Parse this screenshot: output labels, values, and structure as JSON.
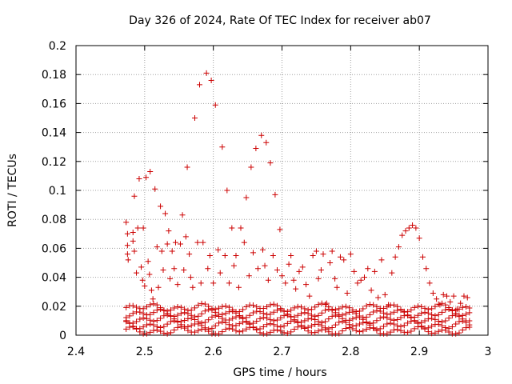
{
  "chart_data": {
    "type": "scatter",
    "title": "Day 326 of 2024, Rate Of TEC Index for receiver ab07",
    "xlabel": "GPS time / hours",
    "ylabel": "ROTI / TECUs",
    "xlim": [
      2.4,
      3.0
    ],
    "ylim": [
      0,
      0.2
    ],
    "xticks": [
      "2.4",
      "2.5",
      "2.6",
      "2.7",
      "2.8",
      "2.9",
      "3"
    ],
    "yticks": [
      "0",
      "0.02",
      "0.04",
      "0.06",
      "0.08",
      "0.1",
      "0.12",
      "0.14",
      "0.16",
      "0.18",
      "0.2"
    ],
    "grid": true,
    "marker": "+",
    "marker_color": "#cc0000",
    "series": [
      {
        "points": [
          [
            2.473,
            0.078
          ],
          [
            2.475,
            0.07
          ],
          [
            2.475,
            0.062
          ],
          [
            2.475,
            0.056
          ],
          [
            2.476,
            0.052
          ],
          [
            2.485,
            0.096
          ],
          [
            2.483,
            0.071
          ],
          [
            2.483,
            0.065
          ],
          [
            2.485,
            0.058
          ],
          [
            2.488,
            0.043
          ],
          [
            2.49,
            0.074
          ],
          [
            2.492,
            0.108
          ],
          [
            2.495,
            0.047
          ],
          [
            2.497,
            0.038
          ],
          [
            2.498,
            0.074
          ],
          [
            2.5,
            0.034
          ],
          [
            2.502,
            0.109
          ],
          [
            2.505,
            0.051
          ],
          [
            2.507,
            0.042
          ],
          [
            2.508,
            0.113
          ],
          [
            2.51,
            0.031
          ],
          [
            2.512,
            0.025
          ],
          [
            2.515,
            0.101
          ],
          [
            2.518,
            0.061
          ],
          [
            2.52,
            0.033
          ],
          [
            2.523,
            0.089
          ],
          [
            2.525,
            0.058
          ],
          [
            2.527,
            0.045
          ],
          [
            2.53,
            0.084
          ],
          [
            2.533,
            0.063
          ],
          [
            2.535,
            0.072
          ],
          [
            2.537,
            0.039
          ],
          [
            2.54,
            0.058
          ],
          [
            2.543,
            0.046
          ],
          [
            2.545,
            0.064
          ],
          [
            2.548,
            0.035
          ],
          [
            2.552,
            0.063
          ],
          [
            2.555,
            0.083
          ],
          [
            2.557,
            0.045
          ],
          [
            2.56,
            0.068
          ],
          [
            2.562,
            0.116
          ],
          [
            2.565,
            0.056
          ],
          [
            2.567,
            0.04
          ],
          [
            2.57,
            0.033
          ],
          [
            2.573,
            0.15
          ],
          [
            2.577,
            0.064
          ],
          [
            2.58,
            0.173
          ],
          [
            2.582,
            0.036
          ],
          [
            2.585,
            0.064
          ],
          [
            2.59,
            0.181
          ],
          [
            2.592,
            0.046
          ],
          [
            2.595,
            0.055
          ],
          [
            2.597,
            0.176
          ],
          [
            2.6,
            0.036
          ],
          [
            2.603,
            0.159
          ],
          [
            2.607,
            0.059
          ],
          [
            2.61,
            0.043
          ],
          [
            2.613,
            0.13
          ],
          [
            2.617,
            0.055
          ],
          [
            2.62,
            0.1
          ],
          [
            2.623,
            0.036
          ],
          [
            2.627,
            0.074
          ],
          [
            2.63,
            0.048
          ],
          [
            2.633,
            0.055
          ],
          [
            2.637,
            0.033
          ],
          [
            2.64,
            0.074
          ],
          [
            2.645,
            0.064
          ],
          [
            2.648,
            0.095
          ],
          [
            2.652,
            0.041
          ],
          [
            2.655,
            0.116
          ],
          [
            2.658,
            0.057
          ],
          [
            2.662,
            0.129
          ],
          [
            2.665,
            0.046
          ],
          [
            2.67,
            0.138
          ],
          [
            2.672,
            0.059
          ],
          [
            2.675,
            0.048
          ],
          [
            2.677,
            0.133
          ],
          [
            2.68,
            0.038
          ],
          [
            2.683,
            0.119
          ],
          [
            2.687,
            0.055
          ],
          [
            2.69,
            0.097
          ],
          [
            2.693,
            0.045
          ],
          [
            2.697,
            0.073
          ],
          [
            2.7,
            0.041
          ],
          [
            2.705,
            0.036
          ],
          [
            2.71,
            0.049
          ],
          [
            2.713,
            0.055
          ],
          [
            2.717,
            0.038
          ],
          [
            2.72,
            0.032
          ],
          [
            2.725,
            0.044
          ],
          [
            2.73,
            0.047
          ],
          [
            2.735,
            0.035
          ],
          [
            2.74,
            0.027
          ],
          [
            2.745,
            0.055
          ],
          [
            2.75,
            0.058
          ],
          [
            2.753,
            0.039
          ],
          [
            2.757,
            0.045
          ],
          [
            2.76,
            0.056
          ],
          [
            2.765,
            0.022
          ],
          [
            2.77,
            0.05
          ],
          [
            2.773,
            0.058
          ],
          [
            2.777,
            0.039
          ],
          [
            2.78,
            0.033
          ],
          [
            2.785,
            0.054
          ],
          [
            2.79,
            0.052
          ],
          [
            2.795,
            0.029
          ],
          [
            2.8,
            0.056
          ],
          [
            2.805,
            0.044
          ],
          [
            2.81,
            0.036
          ],
          [
            2.815,
            0.038
          ],
          [
            2.82,
            0.04
          ],
          [
            2.825,
            0.046
          ],
          [
            2.83,
            0.031
          ],
          [
            2.835,
            0.044
          ],
          [
            2.84,
            0.026
          ],
          [
            2.845,
            0.052
          ],
          [
            2.85,
            0.028
          ],
          [
            2.855,
            0.021
          ],
          [
            2.86,
            0.043
          ],
          [
            2.865,
            0.054
          ],
          [
            2.87,
            0.061
          ],
          [
            2.875,
            0.069
          ],
          [
            2.88,
            0.072
          ],
          [
            2.885,
            0.074
          ],
          [
            2.89,
            0.076
          ],
          [
            2.895,
            0.074
          ],
          [
            2.9,
            0.067
          ],
          [
            2.905,
            0.054
          ],
          [
            2.91,
            0.046
          ],
          [
            2.915,
            0.036
          ],
          [
            2.92,
            0.029
          ],
          [
            2.925,
            0.025
          ],
          [
            2.93,
            0.021
          ],
          [
            2.935,
            0.028
          ],
          [
            2.94,
            0.027
          ],
          [
            2.945,
            0.023
          ],
          [
            2.95,
            0.027
          ],
          [
            2.955,
            0.018
          ],
          [
            2.96,
            0.022
          ],
          [
            2.965,
            0.027
          ],
          [
            2.97,
            0.026
          ]
        ]
      }
    ],
    "baseline_band": {
      "x_start": 2.473,
      "x_end": 2.973,
      "x_step": 0.005,
      "levels": [
        0.003,
        0.007,
        0.011,
        0.015,
        0.019
      ]
    }
  }
}
